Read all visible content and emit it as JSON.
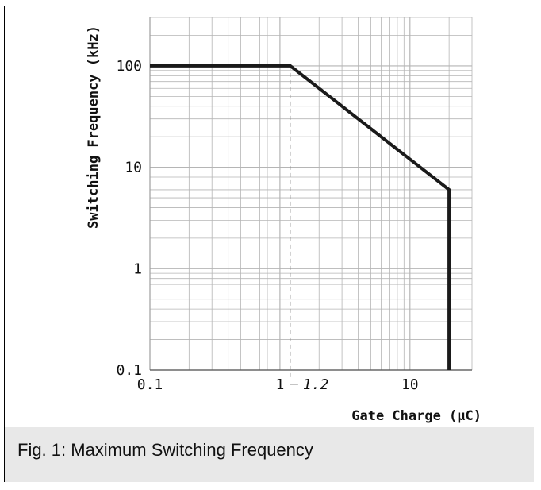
{
  "caption": "Fig. 1: Maximum Switching Frequency",
  "chart_data": {
    "type": "line",
    "xscale": "log",
    "yscale": "log",
    "xlim": [
      0.1,
      30
    ],
    "ylim": [
      0.1,
      300
    ],
    "grid": true,
    "xlabel": "Gate Charge (µC)",
    "ylabel": "Switching Frequency (kHz)",
    "xticks": [
      0.1,
      1,
      10
    ],
    "xtick_labels": [
      "0.1",
      "1",
      "10"
    ],
    "yticks": [
      0.1,
      1,
      10,
      100
    ],
    "ytick_labels": [
      "0.1",
      "1",
      "10",
      "100"
    ],
    "series": [
      {
        "x": [
          0.1,
          1.2,
          20,
          20
        ],
        "y": [
          100,
          100,
          6,
          0.1
        ]
      }
    ],
    "annotations": [
      {
        "text": "1.2",
        "x": 1.2,
        "style": "dashed-vertical-marker"
      }
    ],
    "colors": {
      "line": "#1a1a1a",
      "grid": "#b5b5b5",
      "marker": "#888888",
      "caption_band": "#e8e8e8"
    }
  }
}
